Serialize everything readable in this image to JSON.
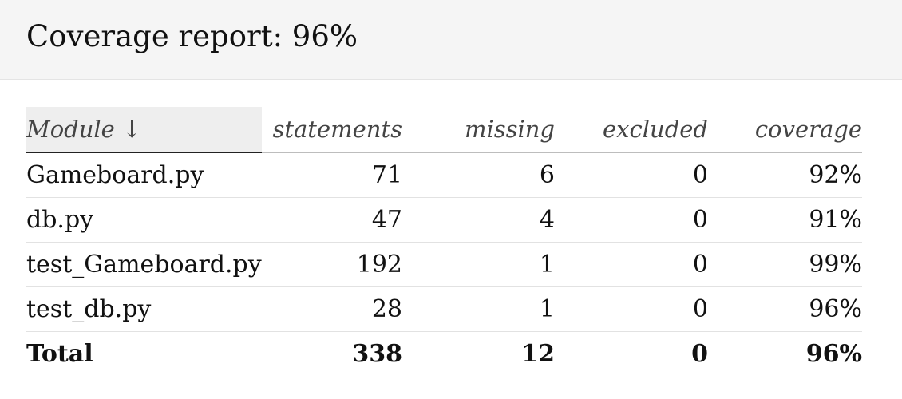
{
  "page": {
    "title": "Coverage report: 96%"
  },
  "table": {
    "headers": {
      "module": "Module ↓",
      "statements": "statements",
      "missing": "missing",
      "excluded": "excluded",
      "coverage": "coverage"
    },
    "rows": [
      {
        "module": "Gameboard.py",
        "statements": "71",
        "missing": "6",
        "excluded": "0",
        "coverage": "92%"
      },
      {
        "module": "db.py",
        "statements": "47",
        "missing": "4",
        "excluded": "0",
        "coverage": "91%"
      },
      {
        "module": "test_Gameboard.py",
        "statements": "192",
        "missing": "1",
        "excluded": "0",
        "coverage": "99%"
      },
      {
        "module": "test_db.py",
        "statements": "28",
        "missing": "1",
        "excluded": "0",
        "coverage": "96%"
      }
    ],
    "total": {
      "module": "Total",
      "statements": "338",
      "missing": "12",
      "excluded": "0",
      "coverage": "96%"
    }
  }
}
